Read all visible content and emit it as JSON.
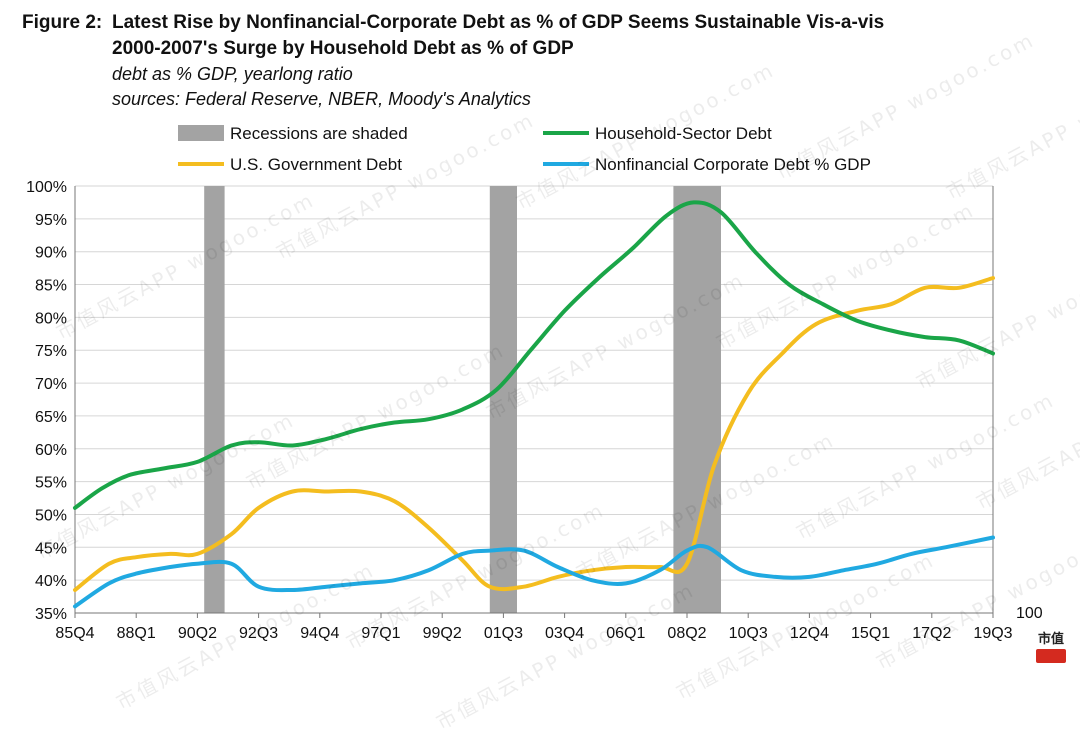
{
  "header": {
    "figure_label": "Figure 2:",
    "title_line1": "Latest Rise by Nonfinancial-Corporate Debt as % of GDP Seems Sustainable Vis-a-vis",
    "title_line2": "2000-2007's  Surge by Household Debt as % of GDP",
    "subtitle1": "debt as % GDP, yearlong ratio",
    "subtitle2": "sources: Federal Reserve, NBER, Moody's Analytics"
  },
  "watermark": "市值风云APP   wogoo.com",
  "logo_text": "市值",
  "colors": {
    "household": "#1aa548",
    "government": "#f4bd1f",
    "corporate": "#20a9e1",
    "recession": "#a3a3a3",
    "grid": "#d6d6d6",
    "logo": "#d42a1f"
  },
  "chart_data": {
    "type": "line",
    "ylim": [
      0.35,
      1.0
    ],
    "yticks": [
      "100%",
      "95%",
      "90%",
      "85%",
      "80%",
      "75%",
      "70%",
      "65%",
      "60%",
      "55%",
      "50%",
      "45%",
      "40%",
      "35%"
    ],
    "xtick_labels": [
      "85Q4",
      "88Q1",
      "90Q2",
      "92Q3",
      "94Q4",
      "97Q1",
      "99Q2",
      "01Q3",
      "03Q4",
      "06Q1",
      "08Q2",
      "10Q3",
      "12Q4",
      "15Q1",
      "17Q2",
      "19Q3"
    ],
    "x_range": [
      "1985Q4",
      "2019Q3"
    ],
    "right_axis_label": "100",
    "grid": true,
    "legend_position": "top",
    "recessions": [
      {
        "start": "1990Q3",
        "end": "1991Q1"
      },
      {
        "start": "2001Q1",
        "end": "2001Q4"
      },
      {
        "start": "2007Q4",
        "end": "2009Q2"
      }
    ],
    "legend": [
      {
        "key": "recession",
        "label": "Recessions are shaded"
      },
      {
        "key": "household",
        "label": "Household-Sector Debt"
      },
      {
        "key": "government",
        "label": "U.S. Government Debt"
      },
      {
        "key": "corporate",
        "label": "Nonfinancial Corporate Debt % GDP"
      }
    ],
    "series": [
      {
        "name": "Household-Sector Debt",
        "key": "household",
        "x": [
          "1985Q4",
          "1986Q4",
          "1987Q4",
          "1989Q1",
          "1990Q2",
          "1991Q3",
          "1992Q3",
          "1993Q4",
          "1995Q1",
          "1996Q2",
          "1997Q3",
          "1998Q4",
          "2000Q1",
          "2001Q2",
          "2002Q3",
          "2003Q4",
          "2005Q1",
          "2006Q2",
          "2007Q3",
          "2008Q3",
          "2009Q3",
          "2010Q4",
          "2012Q1",
          "2013Q2",
          "2014Q3",
          "2015Q4",
          "2017Q1",
          "2018Q2",
          "2019Q3"
        ],
        "values": [
          0.51,
          0.54,
          0.56,
          0.57,
          0.58,
          0.605,
          0.61,
          0.605,
          0.615,
          0.63,
          0.64,
          0.645,
          0.66,
          0.69,
          0.75,
          0.81,
          0.86,
          0.905,
          0.955,
          0.975,
          0.96,
          0.9,
          0.85,
          0.82,
          0.795,
          0.78,
          0.77,
          0.765,
          0.745
        ]
      },
      {
        "name": "U.S. Government Debt",
        "key": "government",
        "x": [
          "1985Q4",
          "1987Q1",
          "1988Q1",
          "1989Q2",
          "1990Q2",
          "1991Q3",
          "1992Q3",
          "1993Q4",
          "1995Q1",
          "1996Q2",
          "1997Q3",
          "1998Q4",
          "2000Q1",
          "2001Q1",
          "2002Q2",
          "2003Q3",
          "2004Q4",
          "2006Q1",
          "2007Q2",
          "2008Q2",
          "2009Q2",
          "2010Q3",
          "2011Q4",
          "2013Q1",
          "2014Q3",
          "2015Q4",
          "2017Q1",
          "2018Q2",
          "2019Q3"
        ],
        "values": [
          0.385,
          0.425,
          0.435,
          0.44,
          0.44,
          0.47,
          0.51,
          0.535,
          0.535,
          0.535,
          0.52,
          0.48,
          0.43,
          0.39,
          0.39,
          0.405,
          0.415,
          0.42,
          0.42,
          0.425,
          0.575,
          0.685,
          0.745,
          0.79,
          0.81,
          0.82,
          0.845,
          0.845,
          0.86
        ]
      },
      {
        "name": "Nonfinancial Corporate Debt % GDP",
        "key": "corporate",
        "x": [
          "1985Q4",
          "1987Q1",
          "1988Q1",
          "1989Q2",
          "1990Q2",
          "1991Q3",
          "1992Q3",
          "1993Q4",
          "1995Q1",
          "1996Q2",
          "1997Q3",
          "1998Q4",
          "2000Q1",
          "2001Q1",
          "2002Q2",
          "2003Q3",
          "2004Q4",
          "2006Q1",
          "2007Q2",
          "2008Q2",
          "2009Q1",
          "2010Q2",
          "2011Q3",
          "2012Q4",
          "2014Q1",
          "2015Q2",
          "2016Q3",
          "2017Q4",
          "2019Q3"
        ],
        "values": [
          0.36,
          0.395,
          0.41,
          0.42,
          0.425,
          0.425,
          0.39,
          0.385,
          0.39,
          0.395,
          0.4,
          0.415,
          0.44,
          0.445,
          0.445,
          0.42,
          0.4,
          0.395,
          0.415,
          0.445,
          0.45,
          0.415,
          0.405,
          0.405,
          0.415,
          0.425,
          0.44,
          0.45,
          0.465
        ]
      }
    ]
  }
}
